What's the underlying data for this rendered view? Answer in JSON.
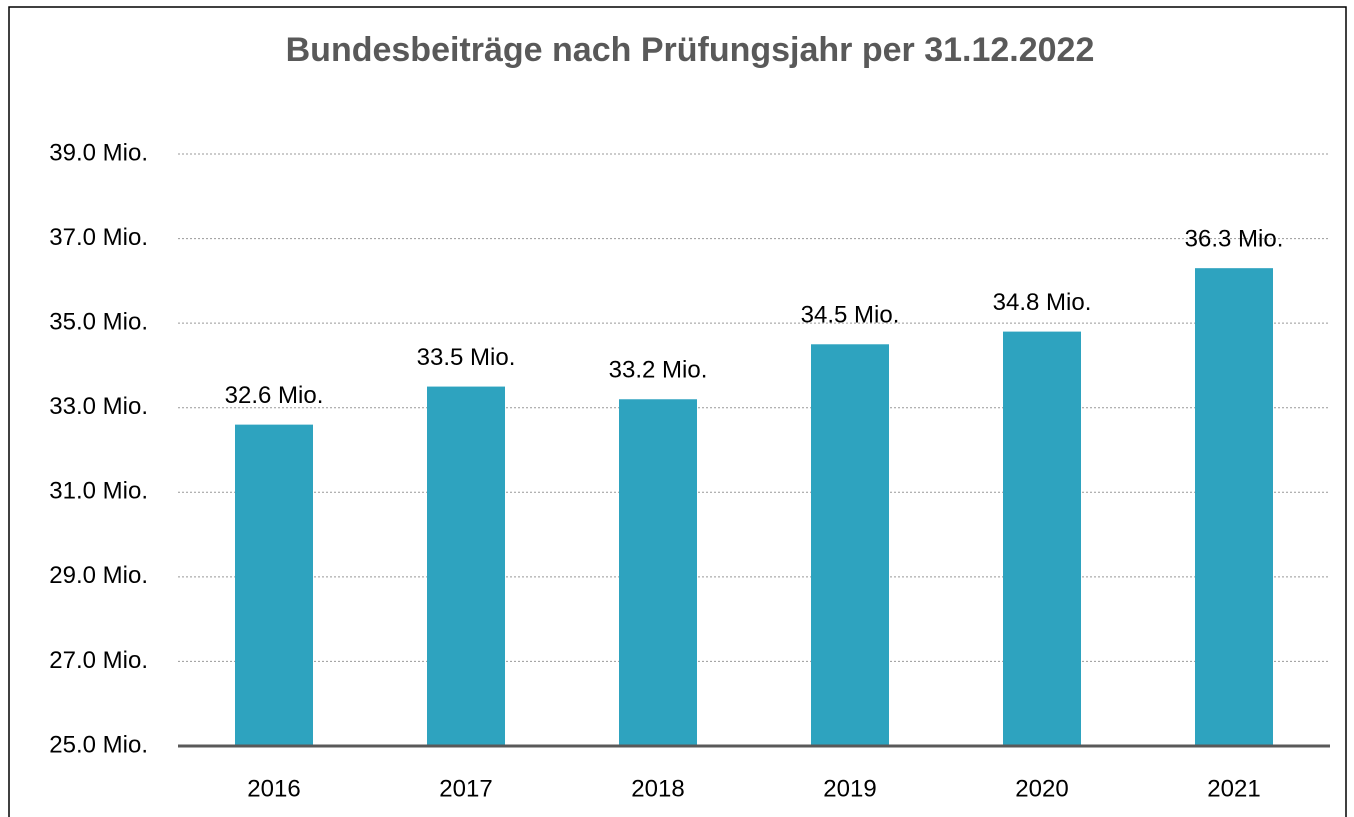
{
  "chart_data": {
    "type": "bar",
    "title": "Bundesbeiträge nach Prüfungsjahr per 31.12.2022",
    "categories": [
      "2016",
      "2017",
      "2018",
      "2019",
      "2020",
      "2021"
    ],
    "values": [
      32.6,
      33.5,
      33.2,
      34.5,
      34.8,
      36.3
    ],
    "value_labels": [
      "32.6 Mio.",
      "33.5 Mio.",
      "33.2 Mio.",
      "34.5 Mio.",
      "34.8 Mio.",
      "36.3 Mio."
    ],
    "color": "#2ea3bf",
    "ylim": [
      25,
      39
    ],
    "yticks": [
      {
        "value": 25,
        "label": "25.0 Mio."
      },
      {
        "value": 27,
        "label": "27.0 Mio."
      },
      {
        "value": 29,
        "label": "29.0 Mio."
      },
      {
        "value": 31,
        "label": "31.0 Mio."
      },
      {
        "value": 33,
        "label": "33.0 Mio."
      },
      {
        "value": 35,
        "label": "35.0 Mio."
      },
      {
        "value": 37,
        "label": "37.0 Mio."
      },
      {
        "value": 39,
        "label": "39.0 Mio."
      }
    ],
    "grid": true
  }
}
